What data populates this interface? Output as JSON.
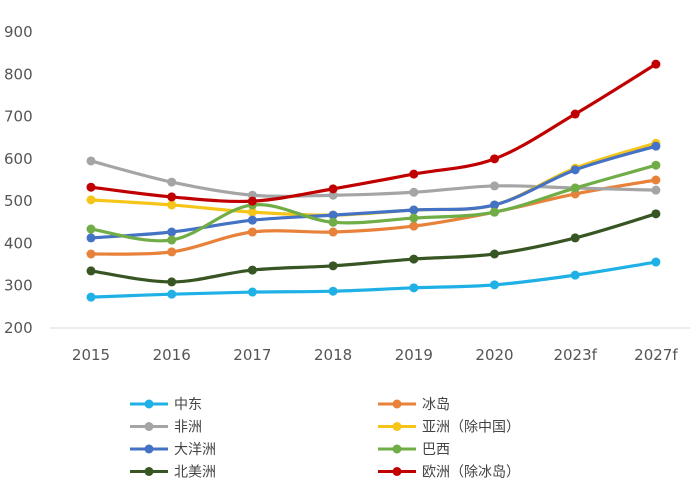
{
  "chart_data": {
    "type": "line",
    "categories": [
      "2015",
      "2016",
      "2017",
      "2018",
      "2019",
      "2020",
      "2023f",
      "2027f"
    ],
    "ylim": [
      200,
      900
    ],
    "yticks": [
      200,
      300,
      400,
      500,
      600,
      700,
      800,
      900
    ],
    "grid": false,
    "smooth": true,
    "legend_placement": "bottom",
    "series": [
      {
        "name": "中东",
        "color": "#1fb1e6",
        "values": [
          273,
          280,
          285,
          287,
          295,
          302,
          325,
          356
        ]
      },
      {
        "name": "冰岛",
        "color": "#e8823a",
        "values": [
          375,
          380,
          427,
          427,
          441,
          474,
          517,
          550
        ]
      },
      {
        "name": "非洲",
        "color": "#a5a5a5",
        "values": [
          595,
          545,
          514,
          514,
          521,
          536,
          531,
          526
        ]
      },
      {
        "name": "亚洲（除中国）",
        "color": "#f5c518",
        "values": [
          503,
          491,
          474,
          467,
          479,
          491,
          578,
          637
        ]
      },
      {
        "name": "大洋洲",
        "color": "#4472c4",
        "values": [
          413,
          427,
          455,
          467,
          479,
          491,
          574,
          630
        ]
      },
      {
        "name": "巴西",
        "color": "#70ad47",
        "values": [
          434,
          408,
          491,
          450,
          460,
          474,
          531,
          585
        ]
      },
      {
        "name": "北美洲",
        "color": "#375623",
        "values": [
          335,
          309,
          337,
          347,
          363,
          375,
          413,
          470
        ]
      },
      {
        "name": "欧洲（除冰岛）",
        "color": "#c00000",
        "values": [
          533,
          510,
          500,
          529,
          564,
          600,
          706,
          824
        ]
      }
    ]
  }
}
